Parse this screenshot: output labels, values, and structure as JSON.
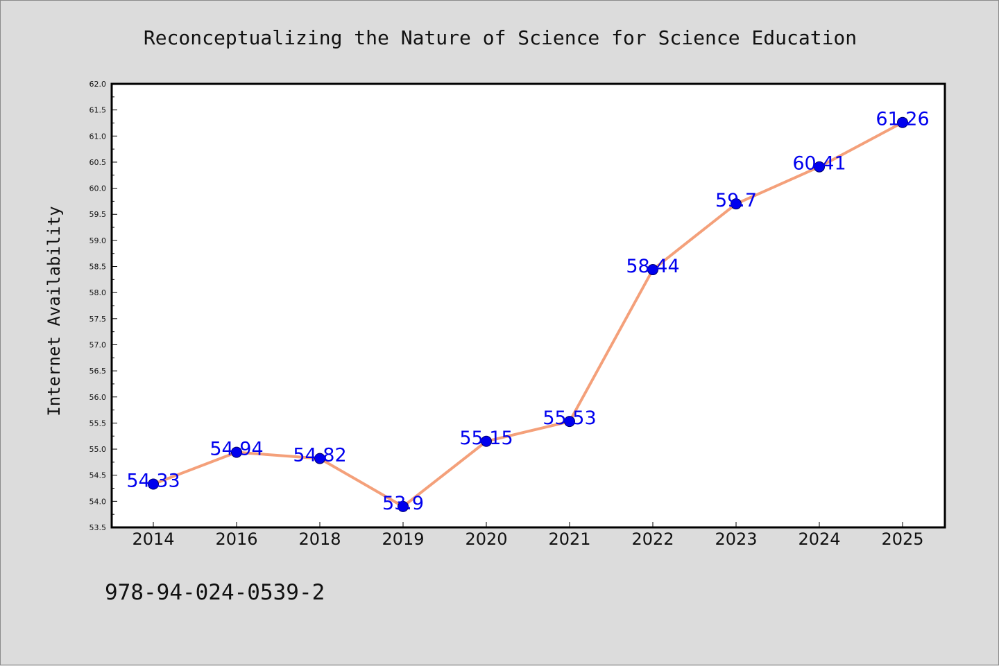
{
  "colors": {
    "background": "#dcdcdc",
    "plot_background": "#ffffff",
    "line": "#f4a07a",
    "marker": "#0000ee",
    "data_label": "#0000ee"
  },
  "footer_text": "978-94-024-0539-2",
  "chart_data": {
    "type": "line",
    "title": "Reconceptualizing the Nature of Science for Science Education",
    "xlabel": "",
    "ylabel": "Internet Availability",
    "categories": [
      "2014",
      "2016",
      "2018",
      "2019",
      "2020",
      "2021",
      "2022",
      "2023",
      "2024",
      "2025"
    ],
    "series": [
      {
        "values": [
          54.33,
          54.94,
          54.82,
          53.9,
          55.15,
          55.53,
          58.44,
          59.7,
          60.41,
          61.26
        ],
        "labels": [
          "54.33",
          "54.94",
          "54.82",
          "53.9",
          "55.15",
          "55.53",
          "58.44",
          "59.7",
          "60.41",
          "61.26"
        ]
      }
    ],
    "ylim": [
      53.5,
      62.0
    ],
    "yticks": [
      "53.5",
      "54.0",
      "54.5",
      "55.0",
      "55.5",
      "56.0",
      "56.5",
      "57.0",
      "57.5",
      "58.0",
      "58.5",
      "59.0",
      "59.5",
      "60.0",
      "60.5",
      "61.0",
      "61.5",
      "62.0"
    ],
    "grid": false,
    "legend": "none"
  }
}
